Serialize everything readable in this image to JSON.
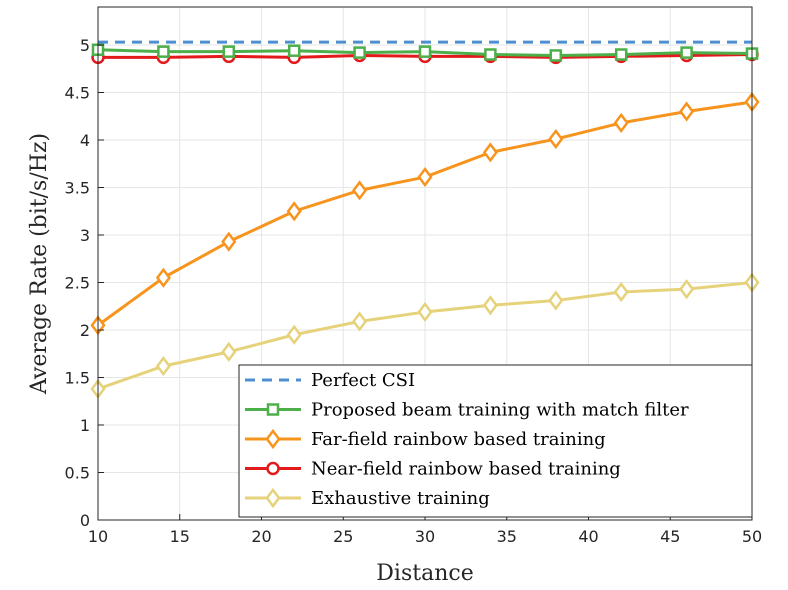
{
  "chart_data": {
    "type": "line",
    "xlabel": "Distance",
    "ylabel": "Average Rate (bit/s/Hz)",
    "xlim": [
      10,
      50
    ],
    "ylim": [
      0,
      5.4
    ],
    "xticks": [
      "10",
      "15",
      "20",
      "25",
      "30",
      "35",
      "40",
      "45",
      "50"
    ],
    "yticks": [
      "0",
      "0.5",
      "1",
      "1.5",
      "2",
      "2.5",
      "3",
      "3.5",
      "4",
      "4.5",
      "5"
    ],
    "grid": true,
    "legend_position": "bottom-right",
    "x": [
      10,
      14,
      18,
      22,
      26,
      30,
      34,
      38,
      42,
      46,
      50
    ],
    "series": [
      {
        "name": "Perfect CSI",
        "color": "#4d8fd1",
        "style": "dashed",
        "marker": "none",
        "values": [
          5.03,
          5.03,
          5.03,
          5.03,
          5.03,
          5.03,
          5.03,
          5.03,
          5.03,
          5.03,
          5.03
        ]
      },
      {
        "name": "Proposed beam training with match filter",
        "color": "#4daf4a",
        "style": "solid",
        "marker": "square",
        "values": [
          4.95,
          4.93,
          4.93,
          4.94,
          4.92,
          4.93,
          4.9,
          4.89,
          4.9,
          4.92,
          4.91
        ]
      },
      {
        "name": "Far-field rainbow based training",
        "color": "#f7941d",
        "style": "solid",
        "marker": "diamond",
        "values": [
          2.05,
          2.55,
          2.93,
          3.25,
          3.47,
          3.61,
          3.87,
          4.01,
          4.18,
          4.3,
          4.4
        ]
      },
      {
        "name": "Near-field rainbow based training",
        "color": "#e31a1c",
        "style": "solid",
        "marker": "circle",
        "values": [
          4.87,
          4.87,
          4.88,
          4.87,
          4.89,
          4.88,
          4.88,
          4.87,
          4.88,
          4.89,
          4.9
        ]
      },
      {
        "name": "Exhaustive training",
        "color": "#e6d27a",
        "style": "solid",
        "marker": "diamond",
        "values": [
          1.38,
          1.62,
          1.77,
          1.95,
          2.09,
          2.19,
          2.26,
          2.31,
          2.4,
          2.43,
          2.5
        ]
      }
    ]
  }
}
